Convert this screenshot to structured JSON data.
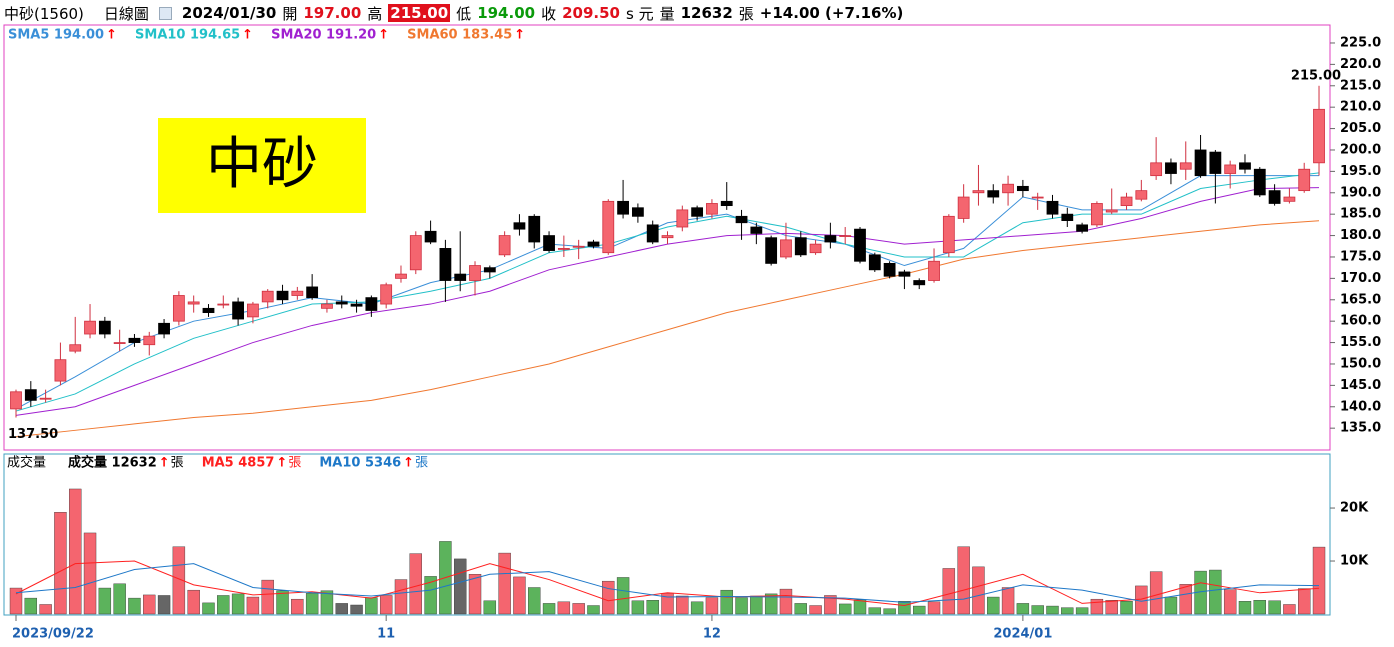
{
  "header": {
    "stock": "中砂(1560)",
    "view": "日線圖",
    "date": "2024/01/30",
    "open_label": "開",
    "open": "197.00",
    "high_label": "高",
    "high": "215.00",
    "low_label": "低",
    "low": "194.00",
    "close_label": "收",
    "close": "209.50",
    "unit": "s 元",
    "volume_label": "量",
    "volume": "12632",
    "volume_unit": "張",
    "change": "+14.00 (+7.16%)"
  },
  "chart_data": [
    {
      "type": "candlestick",
      "label_box": "中砂",
      "annotations": [
        "215.00",
        "137.50"
      ],
      "up_color": "#f4656f",
      "down_color": "#000000",
      "ylim": [
        129.9,
        229.2
      ],
      "yticks": [
        {
          "value": 135,
          "label": "135.0"
        },
        {
          "value": 140,
          "label": "140.0"
        },
        {
          "value": 145,
          "label": "145.0"
        },
        {
          "value": 150,
          "label": "150.0"
        },
        {
          "value": 155,
          "label": "155.0"
        },
        {
          "value": 160,
          "label": "160.0"
        },
        {
          "value": 165,
          "label": "165.0"
        },
        {
          "value": 170,
          "label": "170.0"
        },
        {
          "value": 175,
          "label": "175.0"
        },
        {
          "value": 180,
          "label": "180.0"
        },
        {
          "value": 185,
          "label": "185.0"
        },
        {
          "value": 190,
          "label": "190.0"
        },
        {
          "value": 195,
          "label": "195.0"
        },
        {
          "value": 200,
          "label": "200.0"
        },
        {
          "value": 205,
          "label": "205.0"
        },
        {
          "value": 210,
          "label": "210.0"
        },
        {
          "value": 215,
          "label": "215.0"
        },
        {
          "value": 220,
          "label": "220.0"
        },
        {
          "value": 225,
          "label": "225.0"
        }
      ],
      "open": [
        139.5,
        144,
        142,
        146,
        153,
        157,
        160,
        155,
        156,
        154.5,
        159.5,
        160,
        164,
        163,
        164,
        164.5,
        161,
        164.5,
        167,
        166,
        168,
        163,
        164.5,
        164,
        165.5,
        164,
        170,
        172,
        181,
        177,
        171,
        169.5,
        172.5,
        175.5,
        183,
        184.5,
        180,
        177,
        177.5,
        178.5,
        176,
        188,
        186.5,
        182.5,
        179.5,
        182,
        186.5,
        185,
        188,
        184.5,
        182,
        179.5,
        175,
        179.5,
        176,
        180,
        180,
        181.5,
        175.5,
        173.5,
        171.5,
        169.5,
        169.5,
        176,
        184,
        190,
        190.5,
        190,
        191.5,
        189,
        188,
        185,
        182.5,
        182.5,
        185.5,
        187,
        188.5,
        194,
        197,
        195.5,
        200,
        199.5,
        194.5,
        197,
        195.5,
        190.5,
        188,
        190.5,
        197
      ],
      "high": [
        144,
        146,
        144,
        155,
        161,
        164,
        161,
        158,
        157,
        157.5,
        160.5,
        167,
        166,
        164,
        166,
        165.5,
        164.5,
        167.5,
        168.5,
        168,
        171,
        165,
        166,
        165,
        166,
        169,
        173,
        181,
        183.5,
        179,
        181,
        174,
        173,
        181,
        185,
        185,
        181,
        180,
        179,
        179,
        188.5,
        193,
        187.5,
        183.5,
        181,
        187,
        187,
        188.5,
        192.5,
        186,
        183,
        180,
        183,
        181,
        179,
        183,
        182,
        182,
        176,
        174,
        172,
        170,
        177,
        185,
        192,
        196.5,
        192,
        194,
        193,
        190,
        189.5,
        186.5,
        183,
        188,
        191,
        190,
        193,
        203,
        198,
        202,
        203.5,
        200,
        197.5,
        199,
        196,
        192,
        191,
        197,
        215
      ],
      "low": [
        137.5,
        140,
        141,
        145,
        152.5,
        156,
        156,
        153,
        154,
        152,
        156,
        159,
        162,
        161,
        163,
        159,
        159.5,
        163,
        164,
        165,
        165,
        162,
        163,
        162,
        161,
        163,
        169,
        171,
        178,
        164.5,
        167,
        166,
        170,
        175,
        180,
        177,
        176,
        175,
        174.5,
        177,
        175.5,
        184,
        183,
        178,
        178,
        181,
        183.5,
        184,
        186,
        179,
        178,
        173,
        174.5,
        175,
        175.5,
        177,
        178,
        173.5,
        171.5,
        170,
        167.5,
        167.5,
        169,
        175,
        183,
        187,
        187.5,
        187,
        189,
        186,
        184,
        182,
        180.5,
        182,
        185,
        186,
        188,
        193,
        192,
        193,
        193.5,
        187.5,
        191,
        194.5,
        189,
        187,
        187.5,
        190,
        194
      ],
      "close": [
        143.5,
        141.5,
        142,
        151,
        154.5,
        160,
        157,
        155,
        155,
        156.5,
        157,
        166,
        164.5,
        162,
        164,
        160.5,
        164,
        167,
        165,
        167,
        165.5,
        164,
        164,
        163.5,
        162.5,
        168.5,
        171,
        180,
        178.5,
        169.5,
        169.5,
        173,
        171.5,
        180,
        181.5,
        178.5,
        176.5,
        177,
        177.5,
        177.5,
        188,
        185,
        184.5,
        178.5,
        180,
        186,
        184.5,
        187.5,
        187,
        183,
        180.5,
        173.5,
        179,
        175.5,
        178,
        178.5,
        180,
        174,
        172,
        170.5,
        170.5,
        168.5,
        174,
        184.5,
        189,
        190.5,
        189,
        192,
        190.5,
        189,
        185,
        183.5,
        181,
        187.5,
        186,
        189,
        190.5,
        197,
        194.5,
        197,
        194,
        194.5,
        196.5,
        195.5,
        189.5,
        187.5,
        189,
        195.5,
        209.5
      ],
      "series": [
        {
          "name": "SMA5 194.00",
          "trend": "↑",
          "color": "#3a8fd8",
          "x": [
            0,
            4,
            8,
            12,
            16,
            20,
            24,
            28,
            32,
            36,
            40,
            44,
            48,
            52,
            56,
            60,
            64,
            68,
            72,
            76,
            80,
            84,
            88
          ],
          "values": [
            139.5,
            147,
            155,
            160,
            162.5,
            165.5,
            164,
            169,
            172,
            178,
            177,
            183,
            185,
            180,
            178,
            173,
            177,
            189,
            186,
            186,
            194,
            194,
            194
          ]
        },
        {
          "name": "SMA10 194.65",
          "trend": "↑",
          "color": "#22c0c8",
          "x": [
            0,
            4,
            8,
            12,
            16,
            20,
            24,
            28,
            32,
            36,
            40,
            44,
            48,
            52,
            56,
            60,
            64,
            68,
            72,
            76,
            80,
            84,
            88
          ],
          "values": [
            139,
            143,
            150,
            156,
            160,
            164,
            164.5,
            167,
            170,
            176,
            178,
            182,
            184.5,
            182,
            178,
            175,
            175,
            183,
            185,
            185,
            191,
            193,
            194.65
          ]
        },
        {
          "name": "SMA20 191.20",
          "trend": "↑",
          "color": "#a020d0",
          "x": [
            0,
            4,
            8,
            12,
            16,
            20,
            24,
            28,
            32,
            36,
            40,
            44,
            48,
            52,
            56,
            60,
            64,
            68,
            72,
            76,
            80,
            84,
            88
          ],
          "values": [
            138,
            140,
            145,
            150,
            155,
            159,
            162,
            164,
            167,
            172,
            175,
            178,
            180,
            180.5,
            180,
            178,
            179,
            180,
            181,
            184,
            188,
            191,
            191.2
          ]
        },
        {
          "name": "SMA60 183.45",
          "trend": "↑",
          "color": "#f07830",
          "x": [
            0,
            4,
            8,
            12,
            16,
            20,
            24,
            28,
            32,
            36,
            40,
            44,
            48,
            52,
            56,
            60,
            64,
            68,
            72,
            76,
            80,
            84,
            88
          ],
          "values": [
            133,
            134.5,
            136,
            137.5,
            138.5,
            140,
            141.5,
            144,
            147,
            150,
            154,
            158,
            162,
            165,
            168,
            171,
            174.5,
            176.5,
            178,
            179.5,
            181,
            182.5,
            183.45
          ]
        }
      ]
    },
    {
      "type": "volume",
      "title": "成交量",
      "trend_color": "#ff0000",
      "categories": [
        "2023/09/22",
        null,
        null,
        null,
        null,
        null,
        null,
        null,
        null,
        null,
        null,
        null,
        null,
        null,
        null,
        null,
        null,
        null,
        null,
        null,
        null,
        null,
        null,
        null,
        null,
        "11",
        null,
        null,
        null,
        null,
        null,
        null,
        null,
        null,
        null,
        null,
        null,
        null,
        null,
        null,
        null,
        null,
        null,
        null,
        null,
        null,
        null,
        "12",
        null,
        null,
        null,
        null,
        null,
        null,
        null,
        null,
        null,
        null,
        null,
        null,
        null,
        null,
        null,
        null,
        null,
        null,
        null,
        null,
        "2024/01",
        null,
        null,
        null,
        null,
        null,
        null,
        null,
        null,
        null,
        null,
        null,
        null,
        null,
        null,
        null,
        null,
        null,
        null,
        null,
        null
      ],
      "ylim": [
        0,
        30200
      ],
      "yticks": [
        {
          "value": 10000,
          "label": "10K"
        },
        {
          "value": 20000,
          "label": "20K"
        }
      ],
      "values": [
        4900,
        3000,
        1800,
        19200,
        23600,
        15300,
        4900,
        5700,
        3000,
        3600,
        3500,
        12700,
        4500,
        2100,
        3500,
        3800,
        3200,
        6400,
        4400,
        2800,
        3900,
        4400,
        2000,
        1700,
        3100,
        3500,
        6500,
        11400,
        7100,
        13700,
        10400,
        7500,
        2500,
        11500,
        7000,
        5000,
        2000,
        2300,
        2000,
        1600,
        6200,
        6900,
        2500,
        2600,
        3900,
        3400,
        2300,
        3100,
        4500,
        3100,
        3400,
        3800,
        4700,
        2000,
        1600,
        3500,
        1900,
        2700,
        1200,
        1000,
        2400,
        1500,
        2300,
        8600,
        12700,
        8900,
        3200,
        5000,
        2000,
        1600,
        1500,
        1200,
        1200,
        2800,
        2600,
        2400,
        5300,
        8000,
        3200,
        5600,
        8100,
        8300,
        4600,
        2400,
        2600,
        2500,
        1800,
        4800,
        12632
      ],
      "colors": [
        "#f4656f",
        "#5cb35c",
        "#f4656f",
        "#f4656f",
        "#f4656f",
        "#f4656f",
        "#5cb35c",
        "#5cb35c",
        "#5cb35c",
        "#f4656f",
        "#666666",
        "#f4656f",
        "#f4656f",
        "#5cb35c",
        "#5cb35c",
        "#5cb35c",
        "#f4656f",
        "#f4656f",
        "#5cb35c",
        "#f4656f",
        "#5cb35c",
        "#5cb35c",
        "#666666",
        "#666666",
        "#5cb35c",
        "#f4656f",
        "#f4656f",
        "#f4656f",
        "#5cb35c",
        "#5cb35c",
        "#666666",
        "#f4656f",
        "#5cb35c",
        "#f4656f",
        "#f4656f",
        "#5cb35c",
        "#5cb35c",
        "#f4656f",
        "#f4656f",
        "#5cb35c",
        "#f4656f",
        "#5cb35c",
        "#5cb35c",
        "#5cb35c",
        "#f4656f",
        "#f4656f",
        "#5cb35c",
        "#f4656f",
        "#5cb35c",
        "#5cb35c",
        "#5cb35c",
        "#5cb35c",
        "#f4656f",
        "#5cb35c",
        "#f4656f",
        "#f4656f",
        "#5cb35c",
        "#5cb35c",
        "#5cb35c",
        "#5cb35c",
        "#5cb35c",
        "#5cb35c",
        "#f4656f",
        "#f4656f",
        "#f4656f",
        "#f4656f",
        "#5cb35c",
        "#f4656f",
        "#5cb35c",
        "#5cb35c",
        "#5cb35c",
        "#5cb35c",
        "#5cb35c",
        "#f4656f",
        "#f4656f",
        "#5cb35c",
        "#f4656f",
        "#f4656f",
        "#5cb35c",
        "#f4656f",
        "#5cb35c",
        "#5cb35c",
        "#f4656f",
        "#5cb35c",
        "#5cb35c",
        "#5cb35c",
        "#f4656f",
        "#f4656f",
        "#f4656f"
      ],
      "legend": [
        {
          "name": "成交量 12632",
          "trend": "↑",
          "unit": "張",
          "color": "#000000"
        }
      ],
      "series": [
        {
          "name": "MA5 4857",
          "trend": "↑",
          "unit": "張",
          "color": "#ff2020",
          "x": [
            0,
            4,
            8,
            12,
            16,
            20,
            24,
            28,
            32,
            36,
            40,
            44,
            48,
            52,
            56,
            60,
            64,
            68,
            72,
            76,
            80,
            84,
            88
          ],
          "values": [
            3800,
            9500,
            10000,
            5500,
            3600,
            4200,
            3000,
            6000,
            9500,
            6500,
            2500,
            4000,
            3200,
            3500,
            2800,
            1600,
            4500,
            7500,
            2000,
            2800,
            5900,
            4000,
            4857
          ]
        },
        {
          "name": "MA10 5346",
          "trend": "↑",
          "unit": "張",
          "color": "#1e78c8",
          "x": [
            0,
            4,
            8,
            12,
            16,
            20,
            24,
            28,
            32,
            36,
            40,
            44,
            48,
            52,
            56,
            60,
            64,
            68,
            72,
            76,
            80,
            84,
            88
          ],
          "values": [
            4000,
            5000,
            8400,
            9500,
            5000,
            4000,
            3400,
            4500,
            7500,
            8000,
            4800,
            3200,
            3300,
            3200,
            3000,
            2200,
            2800,
            5500,
            4500,
            2400,
            4200,
            5500,
            5346
          ]
        }
      ]
    }
  ]
}
